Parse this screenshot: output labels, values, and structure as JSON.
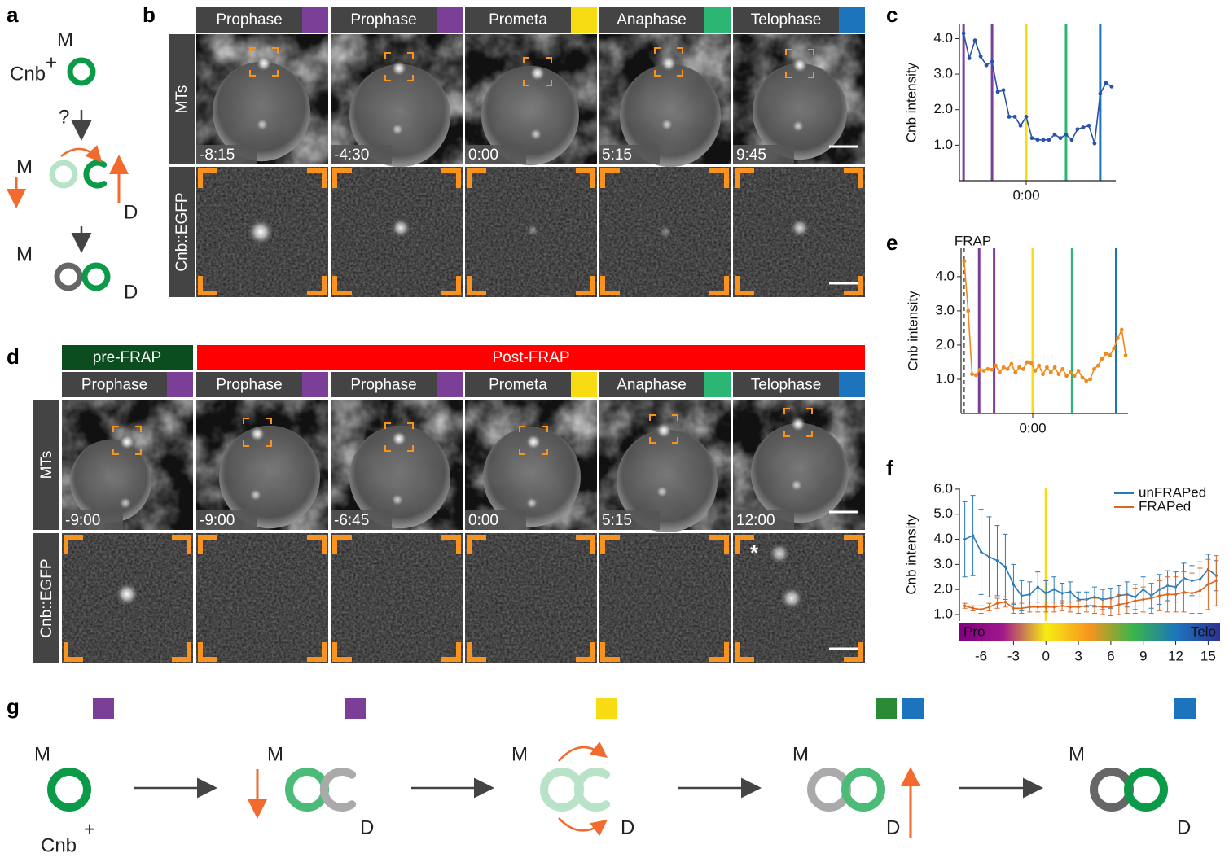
{
  "panel_a": {
    "label": "a",
    "top_m": "M",
    "cnb": "Cnb",
    "cnb_sup": "+",
    "question": "?",
    "mid_m": "M",
    "mid_d": "D",
    "bottom_m": "M",
    "bottom_d": "D"
  },
  "panel_b": {
    "label": "b",
    "phases": [
      {
        "name": "Prophase",
        "color": "#7b3f98"
      },
      {
        "name": "Prophase",
        "color": "#7b3f98"
      },
      {
        "name": "Prometa",
        "color": "#f7dc14"
      },
      {
        "name": "Anaphase",
        "color": "#2bb673"
      },
      {
        "name": "Telophase",
        "color": "#1c75bc"
      }
    ],
    "rows": [
      "MTs",
      "Cnb::EGFP"
    ],
    "times": [
      "-8:15",
      "-4:30",
      "0:00",
      "5:15",
      "9:45"
    ]
  },
  "panel_d": {
    "label": "d",
    "pre": "pre-FRAP",
    "post": "Post-FRAP",
    "phases": [
      {
        "name": "Prophase",
        "color": "#7b3f98"
      },
      {
        "name": "Prophase",
        "color": "#7b3f98"
      },
      {
        "name": "Prophase",
        "color": "#7b3f98"
      },
      {
        "name": "Prometa",
        "color": "#f7dc14"
      },
      {
        "name": "Anaphase",
        "color": "#2bb673"
      },
      {
        "name": "Telophase",
        "color": "#1c75bc"
      }
    ],
    "rows": [
      "MTs",
      "Cnb::EGFP"
    ],
    "times": [
      "-9:00",
      "-9:00",
      "-6:45",
      "0:00",
      "5:15",
      "12:00"
    ],
    "asterisk": "*"
  },
  "chart_data": [
    {
      "type": "line",
      "label": "c",
      "ylabel": "Cnb intensity",
      "xlim": [
        -8.8,
        11.8
      ],
      "ylim": [
        0,
        4.4
      ],
      "xticks": [
        {
          "value": 0,
          "label": "0:00"
        }
      ],
      "yticks": [
        {
          "value": 1,
          "label": "1.0"
        },
        {
          "value": 2,
          "label": "2.0"
        },
        {
          "value": 3,
          "label": "3.0"
        },
        {
          "value": 4,
          "label": "4.0"
        }
      ],
      "vlines": [
        {
          "x": -8.25,
          "color": "#7b3f98"
        },
        {
          "x": -4.5,
          "color": "#7b3f98"
        },
        {
          "x": 0,
          "color": "#f7dc14"
        },
        {
          "x": 5.25,
          "color": "#2bb673"
        },
        {
          "x": 9.75,
          "color": "#1c75bc"
        }
      ],
      "x": [
        -8.25,
        -7.5,
        -6.75,
        -6,
        -5.25,
        -4.5,
        -3.75,
        -3,
        -2.25,
        -1.5,
        -0.75,
        0,
        0.75,
        1.5,
        2.25,
        3,
        3.75,
        4.5,
        5.25,
        6,
        6.75,
        7.5,
        8.25,
        9,
        9.75,
        10.5,
        11.25
      ],
      "series": [
        {
          "color": "#2a52a8",
          "values": [
            4.15,
            3.45,
            3.95,
            3.5,
            3.25,
            3.35,
            2.5,
            2.55,
            1.8,
            1.8,
            1.55,
            1.8,
            1.2,
            1.15,
            1.15,
            1.15,
            1.3,
            1.2,
            1.3,
            1.15,
            1.45,
            1.5,
            1.55,
            1.05,
            2.45,
            2.75,
            2.65
          ]
        }
      ]
    },
    {
      "type": "line",
      "label": "e",
      "ylabel": "Cnb intensity",
      "xlim": [
        -9.1,
        12.1
      ],
      "ylim": [
        0,
        4.83
      ],
      "xticks": [
        {
          "value": 0,
          "label": "0:00"
        }
      ],
      "yticks": [
        {
          "value": 1,
          "label": "1.0"
        },
        {
          "value": 2,
          "label": "2.0"
        },
        {
          "value": 3,
          "label": "3.0"
        },
        {
          "value": 4,
          "label": "4.0"
        }
      ],
      "vlines": [
        {
          "x": -8.7,
          "color": "#555555",
          "style": "dashed",
          "label": "FRAP"
        },
        {
          "x": -6.8,
          "color": "#7b3f98"
        },
        {
          "x": -4.9,
          "color": "#7b3f98"
        },
        {
          "x": 0,
          "color": "#f7dc14"
        },
        {
          "x": 5.0,
          "color": "#2bb673"
        },
        {
          "x": 10.6,
          "color": "#1c75bc"
        }
      ],
      "x": [
        -8.7,
        -8.2,
        -7.7,
        -7.2,
        -6.7,
        -6.2,
        -5.7,
        -5.2,
        -4.7,
        -4.2,
        -3.7,
        -3.2,
        -2.7,
        -2.2,
        -1.7,
        -1.2,
        -0.7,
        -0.2,
        0.3,
        0.8,
        1.3,
        1.8,
        2.3,
        2.8,
        3.3,
        3.8,
        4.3,
        4.8,
        5.3,
        5.8,
        6.3,
        6.8,
        7.3,
        7.8,
        8.3,
        8.8,
        9.3,
        9.8,
        10.3,
        10.8,
        11.3,
        11.8
      ],
      "series": [
        {
          "color": "#f08a1c",
          "values": [
            4.45,
            3.0,
            1.15,
            1.12,
            1.28,
            1.25,
            1.3,
            1.28,
            1.4,
            1.2,
            1.35,
            1.3,
            1.45,
            1.2,
            1.35,
            1.3,
            1.5,
            1.48,
            1.25,
            1.4,
            1.15,
            1.35,
            1.2,
            1.35,
            1.15,
            1.3,
            1.1,
            1.2,
            1.1,
            1.25,
            1.05,
            0.95,
            1.0,
            1.3,
            1.4,
            1.6,
            1.75,
            1.7,
            1.9,
            2.2,
            2.45,
            1.7
          ]
        }
      ]
    },
    {
      "type": "line",
      "label": "f",
      "ylabel": "Cnb intensity",
      "xlim": [
        -8,
        16.1
      ],
      "ylim": [
        0.74,
        6.03
      ],
      "xticks": [
        -6,
        -3,
        0,
        3,
        6,
        9,
        12,
        15
      ],
      "yticks": [
        {
          "value": 1,
          "label": "1.0"
        },
        {
          "value": 2,
          "label": "2.0"
        },
        {
          "value": 3,
          "label": "3.0"
        },
        {
          "value": 4,
          "label": "4.0"
        },
        {
          "value": 5,
          "label": "5.0"
        },
        {
          "value": 6,
          "label": "6.0"
        }
      ],
      "vlines": [
        {
          "x": 0,
          "color": "#f7dc14"
        }
      ],
      "legend": "upper right",
      "colorbar": {
        "start_label": "Pro",
        "end_label": "Telo",
        "colors": [
          "#800080",
          "#a0188c",
          "#f7ec14",
          "#f7941d",
          "#39b54a",
          "#1c75bc",
          "#2e3192"
        ]
      },
      "x": [
        -7.5,
        -6.75,
        -6,
        -5.25,
        -4.5,
        -3.75,
        -3,
        -2.25,
        -1.5,
        -0.75,
        0,
        0.75,
        1.5,
        2.25,
        3,
        3.75,
        4.5,
        5.25,
        6,
        6.75,
        7.5,
        8.25,
        9,
        9.75,
        10.5,
        11.25,
        12,
        12.75,
        13.5,
        14.25,
        15,
        15.75
      ],
      "series": [
        {
          "name": "unFRAPed",
          "color": "#2a7ab8",
          "values": [
            4.0,
            4.15,
            3.5,
            3.3,
            3.15,
            2.9,
            2.2,
            1.75,
            1.8,
            2.1,
            1.85,
            2.0,
            1.85,
            1.9,
            1.6,
            1.6,
            1.7,
            1.6,
            1.65,
            1.75,
            1.8,
            1.7,
            2.0,
            1.75,
            2.0,
            2.15,
            2.1,
            2.45,
            2.35,
            2.4,
            2.8,
            2.55
          ],
          "errors": [
            1.5,
            1.6,
            1.7,
            1.6,
            1.4,
            1.3,
            0.8,
            0.6,
            0.5,
            0.6,
            0.5,
            0.5,
            0.4,
            0.4,
            0.3,
            0.3,
            0.4,
            0.4,
            0.4,
            0.4,
            0.5,
            0.5,
            0.5,
            0.5,
            0.6,
            0.6,
            0.6,
            0.6,
            0.6,
            0.7,
            0.6,
            0.6
          ]
        },
        {
          "name": "FRAPed",
          "color": "#e0641c",
          "values": [
            1.35,
            1.25,
            1.2,
            1.3,
            1.45,
            1.5,
            1.25,
            1.25,
            1.3,
            1.3,
            1.3,
            1.3,
            1.35,
            1.3,
            1.3,
            1.35,
            1.35,
            1.3,
            1.3,
            1.4,
            1.45,
            1.55,
            1.6,
            1.65,
            1.75,
            1.8,
            1.8,
            1.9,
            1.85,
            1.95,
            2.2,
            2.35
          ],
          "errors": [
            0.1,
            0.1,
            0.15,
            0.15,
            0.2,
            0.2,
            0.2,
            0.2,
            0.2,
            0.2,
            0.2,
            0.2,
            0.2,
            0.2,
            0.25,
            0.25,
            0.3,
            0.3,
            0.35,
            0.4,
            0.4,
            0.5,
            0.5,
            0.6,
            0.6,
            0.7,
            0.7,
            0.8,
            0.8,
            0.9,
            1.0,
            1.0
          ]
        }
      ]
    }
  ],
  "panel_g": {
    "label": "g",
    "stages": [
      {
        "markers": [
          "#7b3f98"
        ],
        "m": "M",
        "cnb": "Cnb",
        "cnb_sup": "+"
      },
      {
        "markers": [
          "#7b3f98"
        ],
        "m": "M",
        "d": "D"
      },
      {
        "markers": [
          "#f7dc14"
        ],
        "m": "M",
        "d": "D"
      },
      {
        "markers": [
          "#2a8a35",
          "#1c75bc"
        ],
        "m": "M",
        "d": "D"
      },
      {
        "markers": [
          "#1c75bc"
        ],
        "m": "M",
        "d": "D"
      }
    ]
  }
}
